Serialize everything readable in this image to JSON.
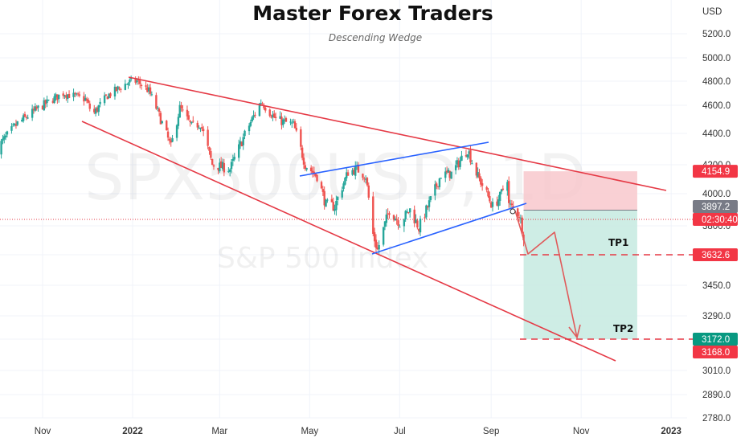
{
  "header": {
    "title": "Master Forex Traders",
    "subtitle": "Descending Wedge"
  },
  "watermark": {
    "symbol": "SPX500USD, 1D",
    "name": "S&P 500 Index"
  },
  "colors": {
    "up": "#26a69a",
    "down": "#ef5350",
    "wedge": "#e53945",
    "channel": "#2962ff",
    "stop_zone": "#f8c8cc",
    "target_zone": "#c9ebe2",
    "arrow": "#e05a5a",
    "tp_line": "#e53945"
  },
  "chart_data": {
    "type": "candlestick",
    "title": "Master Forex Traders",
    "subtitle": "Descending Wedge",
    "currency": "USD",
    "y_ticks": [
      "5200.0",
      "5000.0",
      "4800.0",
      "4600.0",
      "4400.0",
      "4200.0",
      "4000.0",
      "3800.0",
      "3632.6",
      "3450.0",
      "3290.0",
      "3172.0",
      "3010.0",
      "2890.0",
      "2780.0"
    ],
    "y_tick_values": [
      5200,
      5000,
      4800,
      4600,
      4400,
      4200,
      4000,
      3800,
      3632.6,
      3450,
      3290,
      3172,
      3010,
      2890,
      2780
    ],
    "x_ticks": [
      {
        "label": "Nov",
        "date": "2021-11-01",
        "bold": false
      },
      {
        "label": "2022",
        "date": "2022-01-01",
        "bold": true
      },
      {
        "label": "Mar",
        "date": "2022-03-01",
        "bold": false
      },
      {
        "label": "May",
        "date": "2022-05-01",
        "bold": false
      },
      {
        "label": "Jul",
        "date": "2022-07-01",
        "bold": false
      },
      {
        "label": "Sep",
        "date": "2022-09-01",
        "bold": false
      },
      {
        "label": "Nov",
        "date": "2022-11-01",
        "bold": false
      },
      {
        "label": "2023",
        "date": "2023-01-01",
        "bold": true
      }
    ],
    "price_path": [
      [
        "2021-10-01",
        4300
      ],
      [
        "2021-10-15",
        4470
      ],
      [
        "2021-11-01",
        4600
      ],
      [
        "2021-11-15",
        4700
      ],
      [
        "2021-11-30",
        4650
      ],
      [
        "2021-12-05",
        4530
      ],
      [
        "2021-12-15",
        4680
      ],
      [
        "2021-12-29",
        4790
      ],
      [
        "2022-01-04",
        4800
      ],
      [
        "2022-01-12",
        4720
      ],
      [
        "2022-01-20",
        4500
      ],
      [
        "2022-01-27",
        4310
      ],
      [
        "2022-02-02",
        4580
      ],
      [
        "2022-02-10",
        4450
      ],
      [
        "2022-02-16",
        4470
      ],
      [
        "2022-02-24",
        4200
      ],
      [
        "2022-03-08",
        4170
      ],
      [
        "2022-03-16",
        4350
      ],
      [
        "2022-03-29",
        4630
      ],
      [
        "2022-04-08",
        4500
      ],
      [
        "2022-04-20",
        4460
      ],
      [
        "2022-04-28",
        4200
      ],
      [
        "2022-05-06",
        4120
      ],
      [
        "2022-05-12",
        3930
      ],
      [
        "2022-05-18",
        3920
      ],
      [
        "2022-05-27",
        4150
      ],
      [
        "2022-06-02",
        4170
      ],
      [
        "2022-06-08",
        4120
      ],
      [
        "2022-06-13",
        3750
      ],
      [
        "2022-06-16",
        3660
      ],
      [
        "2022-06-24",
        3900
      ],
      [
        "2022-07-01",
        3820
      ],
      [
        "2022-07-08",
        3900
      ],
      [
        "2022-07-14",
        3790
      ],
      [
        "2022-07-22",
        3960
      ],
      [
        "2022-07-29",
        4130
      ],
      [
        "2022-08-05",
        4140
      ],
      [
        "2022-08-16",
        4300
      ],
      [
        "2022-08-22",
        4140
      ],
      [
        "2022-08-26",
        4060
      ],
      [
        "2022-09-02",
        3920
      ],
      [
        "2022-09-07",
        3980
      ],
      [
        "2022-09-12",
        4110
      ],
      [
        "2022-09-13",
        3930
      ],
      [
        "2022-09-20",
        3870
      ],
      [
        "2022-09-23",
        3750
      ]
    ],
    "current_price": "3897.2",
    "countdown": "02:30:40",
    "prices": {
      "stop": "4154.9",
      "tp1": "3632.6",
      "tp2": "3172.0",
      "wedge_low": "3168.0"
    },
    "annotations": [
      "TP1",
      "TP2"
    ]
  }
}
